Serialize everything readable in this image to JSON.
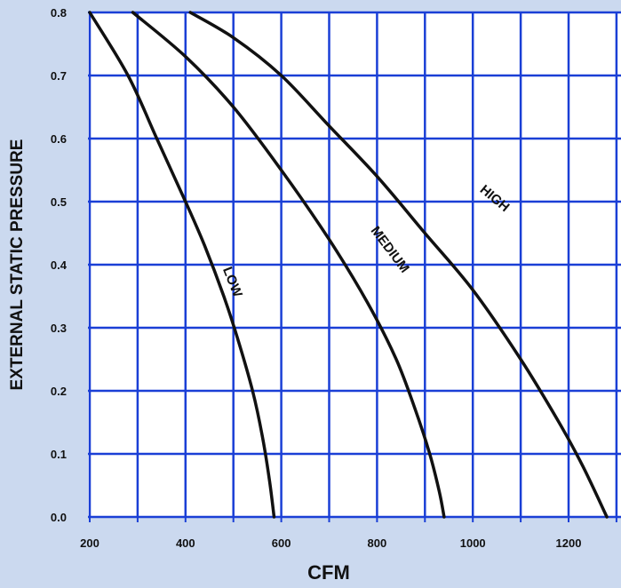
{
  "chart_data": {
    "type": "line",
    "title": "",
    "xlabel": "CFM",
    "ylabel": "EXTERNAL STATIC PRESSURE",
    "xlim": [
      200,
      1300
    ],
    "ylim": [
      0,
      0.8
    ],
    "x_ticks": [
      200,
      400,
      600,
      800,
      1000,
      1200
    ],
    "x_tick_labels": [
      "200",
      "400",
      "600",
      "800",
      "1000",
      "1200"
    ],
    "y_ticks": [
      0,
      0.1,
      0.2,
      0.3,
      0.4,
      0.5,
      0.6,
      0.7,
      0.8
    ],
    "y_tick_labels": [
      "0.0",
      "0.1",
      "0.2",
      "0.3",
      "0.4",
      "0.5",
      "0.6",
      "0.7",
      "0.8"
    ],
    "grid": true,
    "legend": "none",
    "colors": {
      "background": "#cbd9ef",
      "plot_area": "#ffffff",
      "grid": "#1a3fd6",
      "curve": "#111111"
    },
    "series": [
      {
        "name": "LOW",
        "x": [
          200,
          280,
          340,
          400,
          440,
          480,
          510,
          540,
          560,
          575,
          585
        ],
        "y": [
          0.8,
          0.7,
          0.6,
          0.5,
          0.43,
          0.35,
          0.28,
          0.2,
          0.13,
          0.06,
          0.0
        ]
      },
      {
        "name": "MEDIUM",
        "x": [
          290,
          400,
          500,
          600,
          700,
          780,
          840,
          880,
          910,
          930,
          940
        ],
        "y": [
          0.8,
          0.73,
          0.65,
          0.55,
          0.44,
          0.34,
          0.25,
          0.17,
          0.1,
          0.04,
          0.0
        ]
      },
      {
        "name": "HIGH",
        "x": [
          410,
          500,
          600,
          700,
          800,
          900,
          1000,
          1100,
          1180,
          1230,
          1280
        ],
        "y": [
          0.8,
          0.76,
          0.7,
          0.62,
          0.54,
          0.45,
          0.36,
          0.25,
          0.15,
          0.08,
          0.0
        ]
      }
    ],
    "curve_labels": [
      {
        "text": "LOW",
        "x": 490,
        "y": 0.37,
        "angle": 68
      },
      {
        "text": "MEDIUM",
        "x": 820,
        "y": 0.42,
        "angle": 53
      },
      {
        "text": "HIGH",
        "x": 1040,
        "y": 0.5,
        "angle": 40
      }
    ]
  }
}
